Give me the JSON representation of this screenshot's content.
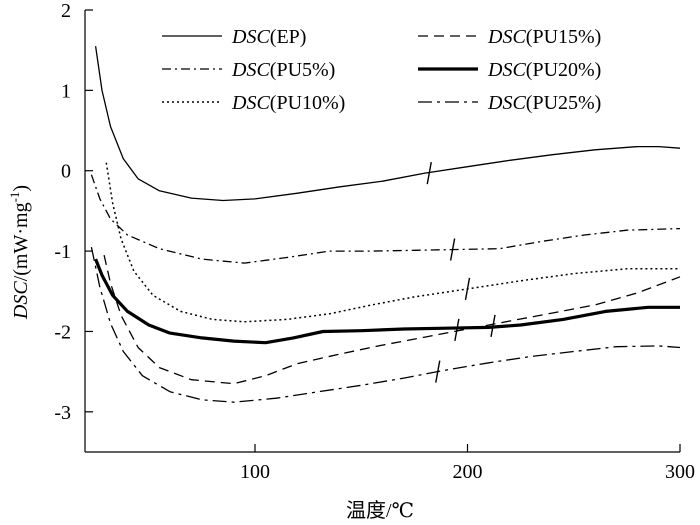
{
  "chart_data": {
    "type": "line",
    "xlabel": "温度/℃",
    "ylabel": {
      "italic": "DSC",
      "rest": "/(mW·mg",
      "sup": "-1",
      "close": ")"
    },
    "xlim": [
      20,
      300
    ],
    "ylim": [
      -3.5,
      2
    ],
    "xticks": [
      100,
      200,
      300
    ],
    "yticks": [
      2,
      1,
      0,
      -1,
      -2,
      -3
    ],
    "grid": false,
    "legend": "top",
    "series": [
      {
        "name": "DSC(EP)",
        "label_italic": "DSC",
        "label_rest": "(EP)",
        "style": "solid",
        "points": [
          [
            25,
            1.55
          ],
          [
            28,
            1.0
          ],
          [
            32,
            0.55
          ],
          [
            38,
            0.15
          ],
          [
            45,
            -0.1
          ],
          [
            55,
            -0.25
          ],
          [
            70,
            -0.34
          ],
          [
            85,
            -0.37
          ],
          [
            100,
            -0.35
          ],
          [
            120,
            -0.28
          ],
          [
            140,
            -0.2
          ],
          [
            160,
            -0.13
          ],
          [
            180,
            -0.03
          ],
          [
            200,
            0.05
          ],
          [
            220,
            0.13
          ],
          [
            240,
            0.2
          ],
          [
            260,
            0.26
          ],
          [
            280,
            0.3
          ],
          [
            290,
            0.3
          ],
          [
            300,
            0.28
          ]
        ],
        "marker": [
          182,
          -0.03
        ]
      },
      {
        "name": "DSC(PU5%)",
        "label_italic": "DSC",
        "label_rest": "(PU5%)",
        "style": "dashdot",
        "points": [
          [
            23,
            -0.05
          ],
          [
            27,
            -0.35
          ],
          [
            32,
            -0.6
          ],
          [
            40,
            -0.8
          ],
          [
            55,
            -0.97
          ],
          [
            75,
            -1.1
          ],
          [
            95,
            -1.15
          ],
          [
            115,
            -1.08
          ],
          [
            135,
            -1.0
          ],
          [
            155,
            -1.0
          ],
          [
            175,
            -0.99
          ],
          [
            195,
            -0.98
          ],
          [
            215,
            -0.97
          ],
          [
            235,
            -0.88
          ],
          [
            255,
            -0.8
          ],
          [
            275,
            -0.74
          ],
          [
            300,
            -0.72
          ]
        ],
        "marker": [
          193,
          -0.98
        ]
      },
      {
        "name": "DSC(PU10%)",
        "label_italic": "DSC",
        "label_rest": "(PU10%)",
        "style": "dotted",
        "points": [
          [
            30,
            0.1
          ],
          [
            33,
            -0.4
          ],
          [
            37,
            -0.85
          ],
          [
            43,
            -1.25
          ],
          [
            52,
            -1.55
          ],
          [
            65,
            -1.75
          ],
          [
            80,
            -1.85
          ],
          [
            95,
            -1.88
          ],
          [
            115,
            -1.85
          ],
          [
            135,
            -1.78
          ],
          [
            155,
            -1.67
          ],
          [
            175,
            -1.57
          ],
          [
            200,
            -1.47
          ],
          [
            225,
            -1.37
          ],
          [
            250,
            -1.28
          ],
          [
            275,
            -1.22
          ],
          [
            300,
            -1.22
          ]
        ],
        "marker": [
          200,
          -1.47
        ]
      },
      {
        "name": "DSC(PU15%)",
        "label_italic": "DSC",
        "label_rest": "(PU15%)",
        "style": "dashed",
        "points": [
          [
            29,
            -1.05
          ],
          [
            32,
            -1.4
          ],
          [
            37,
            -1.8
          ],
          [
            45,
            -2.2
          ],
          [
            55,
            -2.45
          ],
          [
            70,
            -2.6
          ],
          [
            90,
            -2.65
          ],
          [
            105,
            -2.55
          ],
          [
            120,
            -2.4
          ],
          [
            140,
            -2.28
          ],
          [
            160,
            -2.17
          ],
          [
            180,
            -2.07
          ],
          [
            200,
            -1.97
          ],
          [
            220,
            -1.87
          ],
          [
            240,
            -1.77
          ],
          [
            260,
            -1.67
          ],
          [
            280,
            -1.52
          ],
          [
            300,
            -1.32
          ]
        ],
        "marker": [
          195,
          -1.98
        ]
      },
      {
        "name": "DSC(PU20%)",
        "label_italic": "DSC",
        "label_rest": "(PU20%)",
        "style": "thick",
        "points": [
          [
            25,
            -1.1
          ],
          [
            28,
            -1.3
          ],
          [
            33,
            -1.55
          ],
          [
            40,
            -1.75
          ],
          [
            50,
            -1.92
          ],
          [
            60,
            -2.02
          ],
          [
            75,
            -2.08
          ],
          [
            90,
            -2.12
          ],
          [
            105,
            -2.14
          ],
          [
            118,
            -2.08
          ],
          [
            132,
            -2.0
          ],
          [
            150,
            -1.99
          ],
          [
            170,
            -1.97
          ],
          [
            190,
            -1.96
          ],
          [
            210,
            -1.95
          ],
          [
            225,
            -1.92
          ],
          [
            245,
            -1.85
          ],
          [
            265,
            -1.75
          ],
          [
            285,
            -1.7
          ],
          [
            300,
            -1.7
          ]
        ],
        "marker": [
          212,
          -1.93
        ]
      },
      {
        "name": "DSC(PU25%)",
        "label_italic": "DSC",
        "label_rest": "(PU25%)",
        "style": "longdashdot",
        "points": [
          [
            23,
            -0.95
          ],
          [
            27,
            -1.45
          ],
          [
            32,
            -1.9
          ],
          [
            38,
            -2.25
          ],
          [
            47,
            -2.55
          ],
          [
            60,
            -2.75
          ],
          [
            75,
            -2.85
          ],
          [
            90,
            -2.88
          ],
          [
            110,
            -2.83
          ],
          [
            130,
            -2.75
          ],
          [
            150,
            -2.67
          ],
          [
            170,
            -2.58
          ],
          [
            190,
            -2.48
          ],
          [
            210,
            -2.39
          ],
          [
            230,
            -2.31
          ],
          [
            250,
            -2.25
          ],
          [
            270,
            -2.19
          ],
          [
            290,
            -2.18
          ],
          [
            300,
            -2.2
          ]
        ],
        "marker": [
          186,
          -2.5
        ]
      }
    ]
  }
}
